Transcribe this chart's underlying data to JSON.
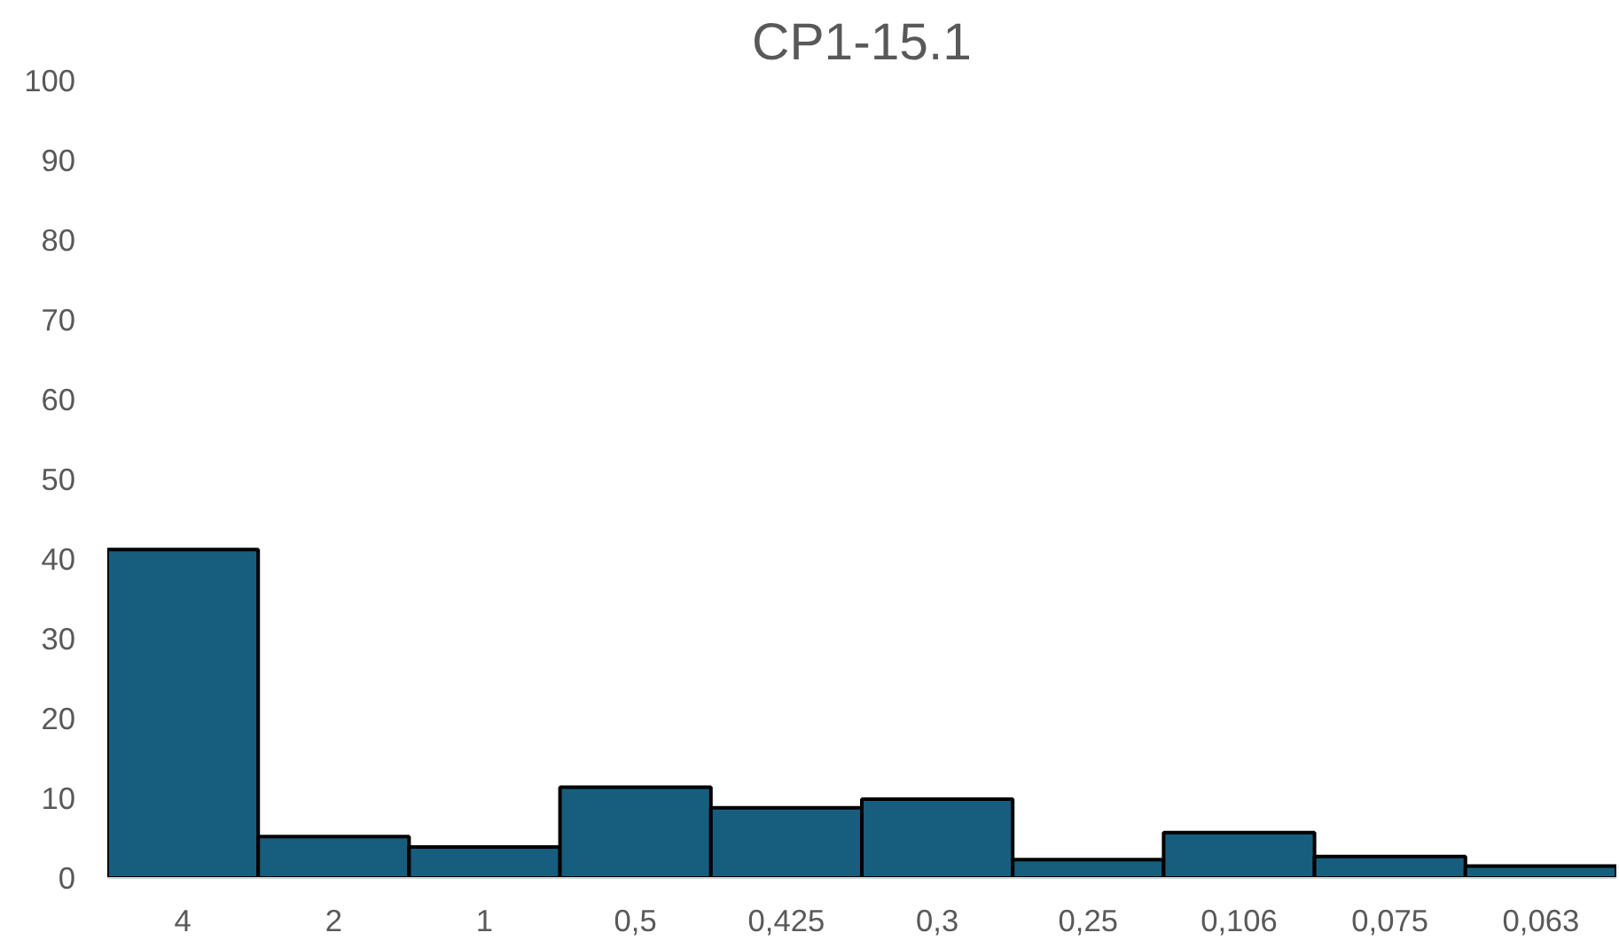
{
  "chart_data": {
    "type": "bar",
    "title": "CP1-15.1",
    "categories": [
      "4",
      "2",
      "1",
      "0,5",
      "0,425",
      "0,3",
      "0,25",
      "0,106",
      "0,075",
      "0,063"
    ],
    "values": [
      41.2,
      5.2,
      3.9,
      11.4,
      8.8,
      9.9,
      2.3,
      5.7,
      2.7,
      1.5
    ],
    "color": "#175e7e",
    "ylim": [
      0,
      100
    ],
    "yticks": [
      0,
      10,
      20,
      30,
      40,
      50,
      60,
      70,
      80,
      90,
      100
    ],
    "grid": false
  }
}
